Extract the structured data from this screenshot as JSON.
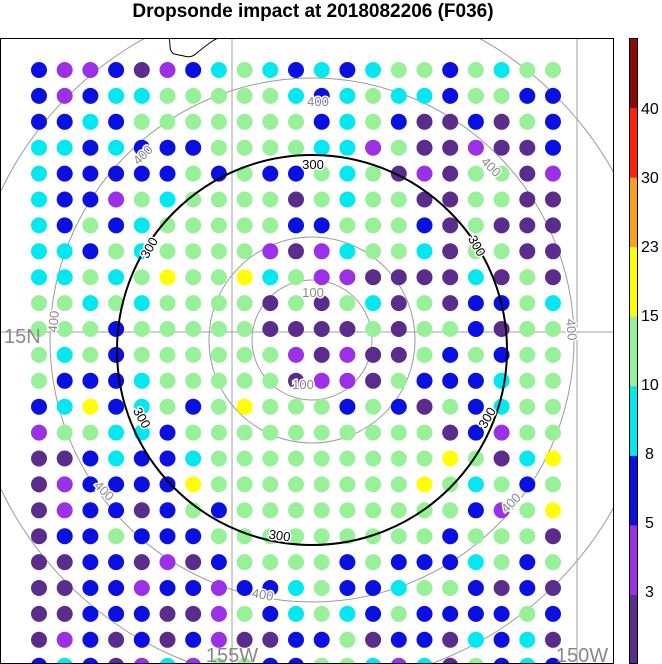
{
  "title": "Dropsonde impact at 2018082206 (F036)",
  "axes": {
    "lat_labels": [
      "15N"
    ],
    "lon_labels": [
      "155W",
      "150W"
    ]
  },
  "rings": {
    "labels": [
      "100",
      "300",
      "400"
    ],
    "highlight": "300"
  },
  "colorbar": {
    "labels": [
      "3",
      "5",
      "8",
      "10",
      "15",
      "23",
      "30",
      "40"
    ],
    "colors": [
      "#5a2d8c",
      "#9b30e6",
      "#0a10e0",
      "#00e8f0",
      "#98f098",
      "#ffff00",
      "#f8a020",
      "#ff2010",
      "#8a0a0a"
    ]
  },
  "dot_color_codes": {
    "d": "#5a2d8c",
    "p": "#9b30e6",
    "b": "#0a10e0",
    "c": "#00e8f0",
    "g": "#98f098",
    "y": "#ffff00"
  },
  "dot_grid": [
    "bppbdpbcgcbcbcggbgcgg",
    "bpbccgggggcbcgccbggbb",
    "bbcbgggggggbcgbddbdgb",
    "ccbcbbbggggccpgddpddb",
    "cbbbbbgbgbbgcgdpdggdp",
    "cbbpgcggggdgcggddggdd",
    "cbgbcgggggbbgggbdgddd",
    "ccbgcggggpdpcggcdggdd",
    "ccgcgyggycgppddddcdgd",
    "ggcgcggggdgdgcdgdbbgc",
    "gggbgggggddddgdggbdgg",
    "gcgbggggggpdpddgbgbgg",
    "gbbbcgggggdppdgbbbcgg",
    "bcybcgbgygggbgbdgbcgg",
    "pggccbggggggggggdbpgg",
    "ddbcbbcgggggggggygdcy",
    "dpbbbbyggggggggygcgbg",
    "dpbbdbgbgggggggggbpgy",
    "dbbgbbbgggggggggbgggd",
    "ddbbdpdbggggbgbbbcgbg",
    "ddbbpbbpbbcgbbcggbdbd",
    "ddbbbddpgbcgcbgbbbbgb",
    "dpbdbdbpddbbgdbbdcbcd",
    "bcbdpcpggbbggcpcdgbcb"
  ]
}
